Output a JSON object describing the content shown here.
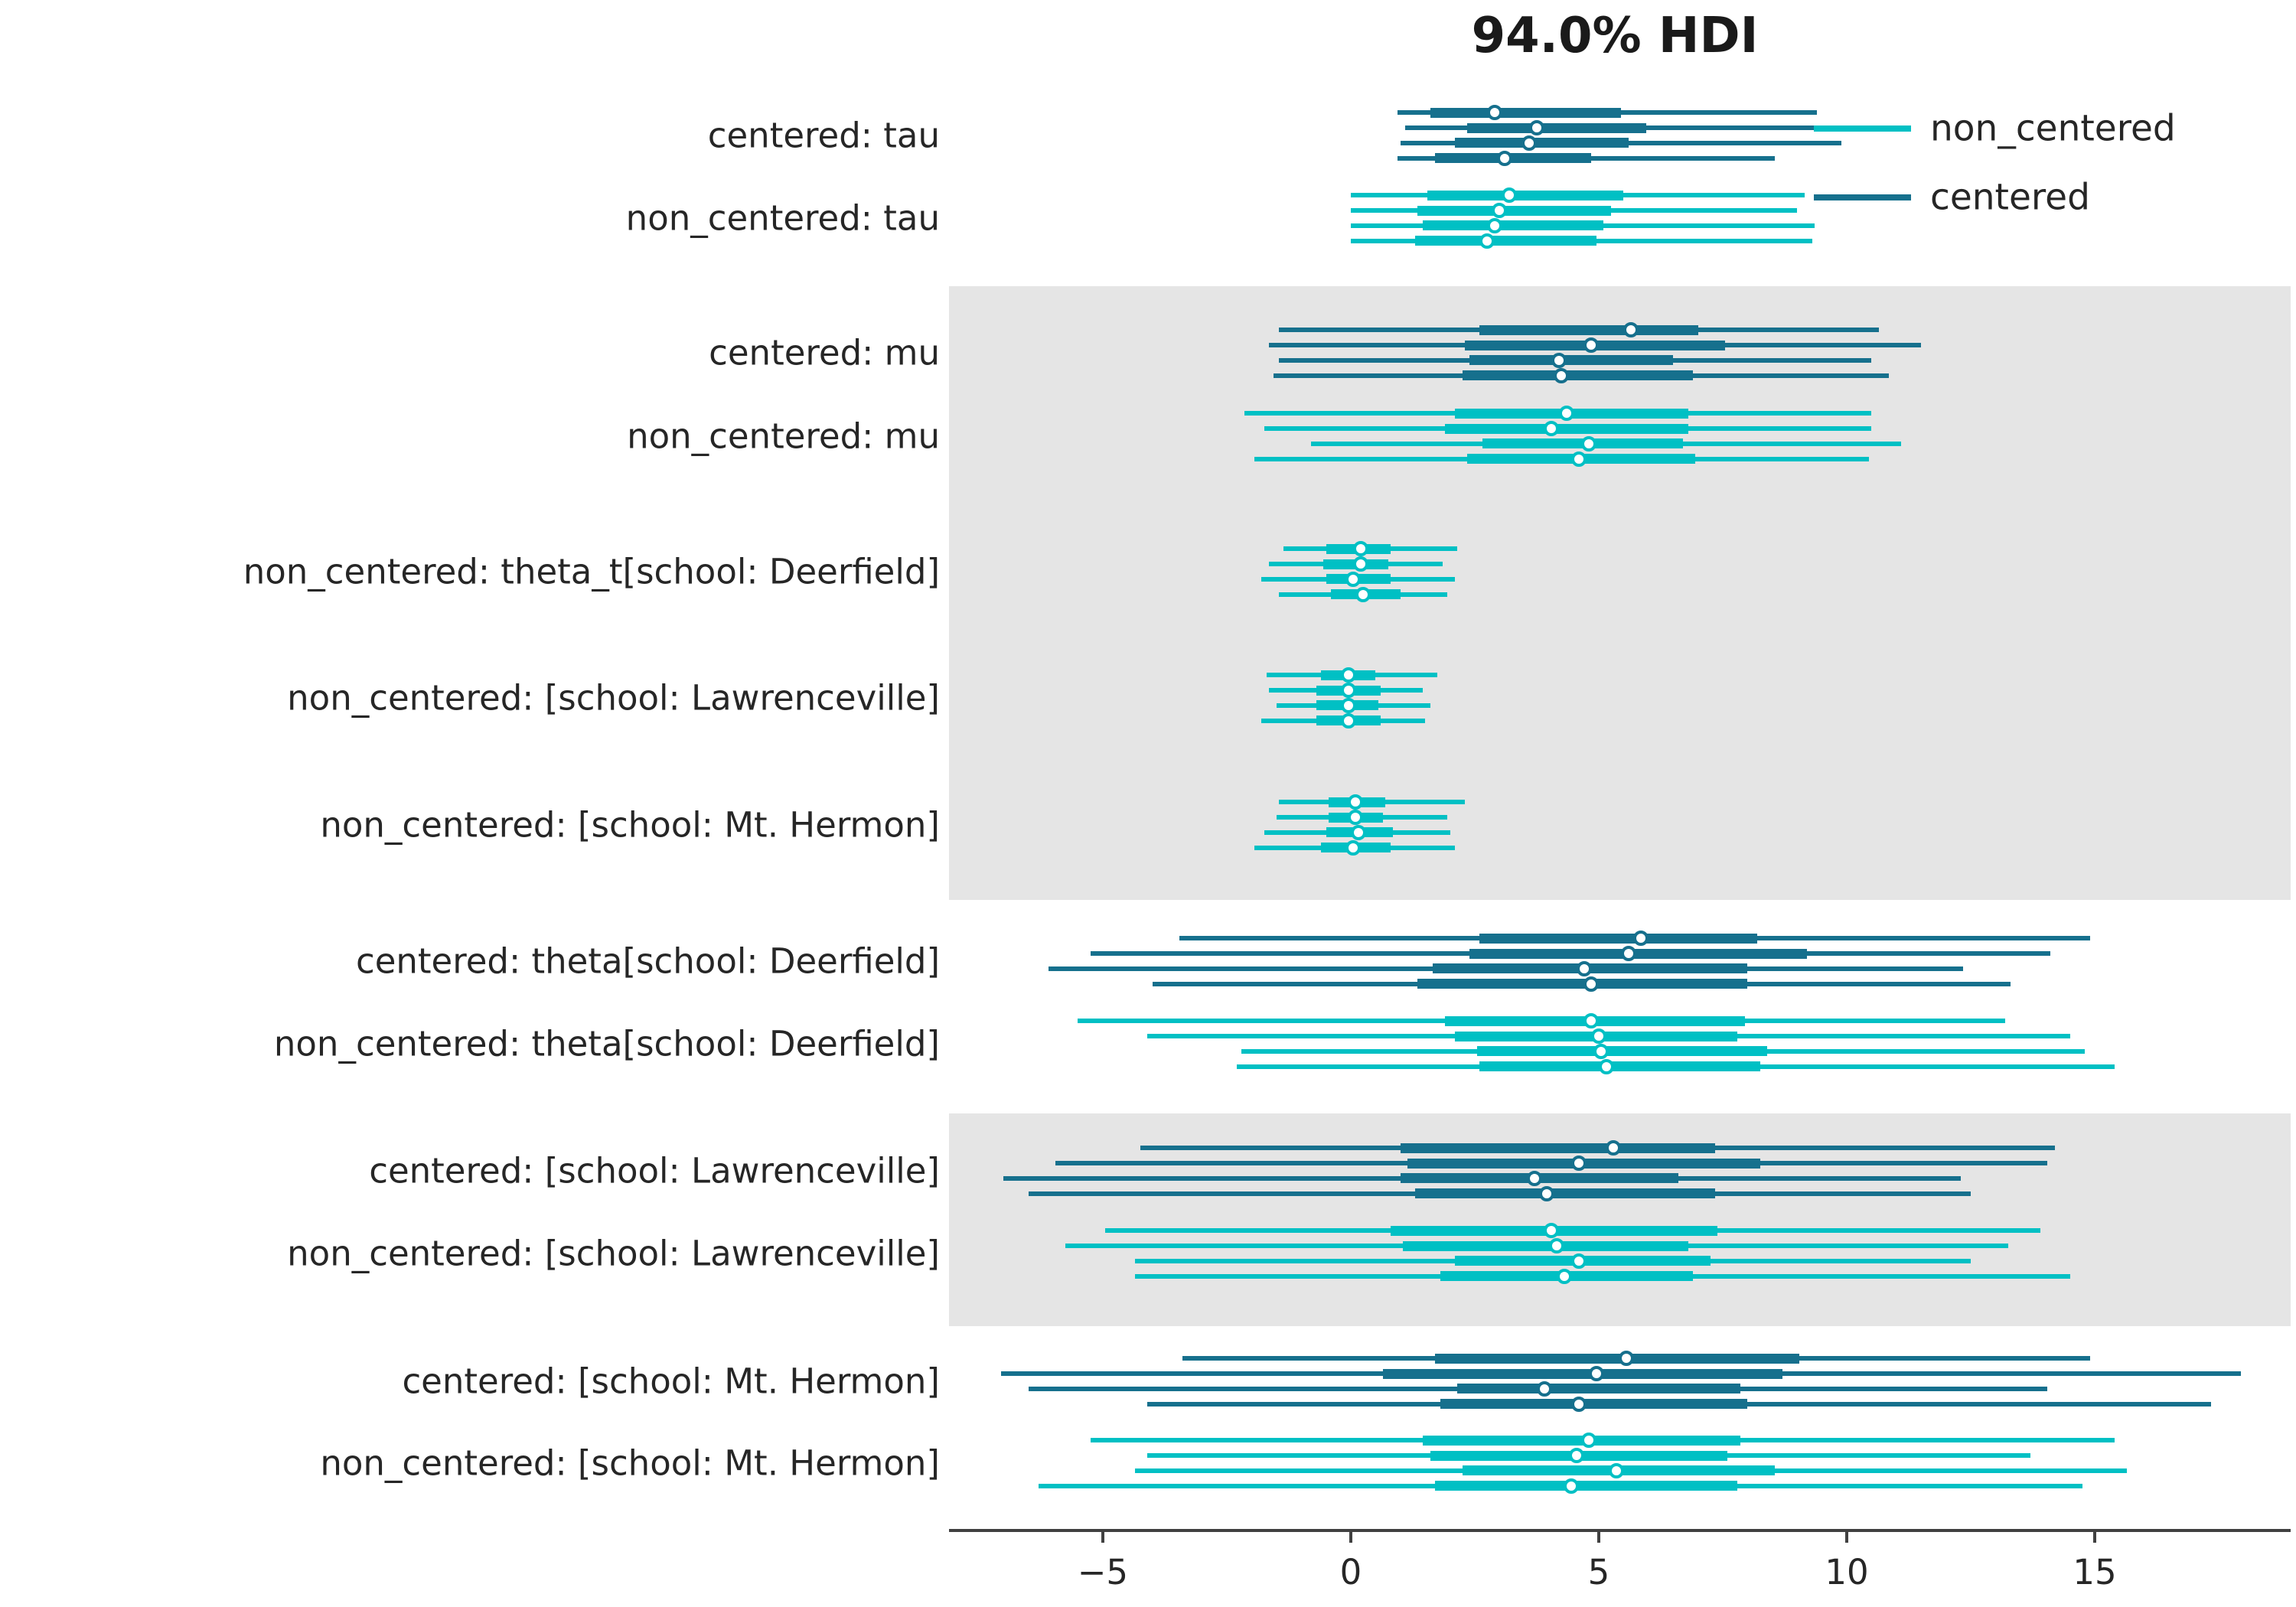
{
  "title": "94.0% HDI",
  "legend": {
    "items": [
      {
        "label": "non_centered",
        "color": "#00c0c4"
      },
      {
        "label": "centered",
        "color": "#16708d"
      }
    ]
  },
  "colors": {
    "centered": "#16708d",
    "non_centered": "#00c0c4",
    "shaded_band": "#e5e5e5",
    "axis": "#414141",
    "text": "#262626"
  },
  "chart_data": {
    "type": "forest",
    "title": "94.0% HDI",
    "hdi_prob": 0.94,
    "orientation": "horizontal",
    "xlabel": "",
    "x_ticks": [
      -5,
      0,
      5,
      10,
      15
    ],
    "xlim": [
      -8.1,
      18.95
    ],
    "legend_entries": [
      "non_centered",
      "centered"
    ],
    "chains_per_row": 4,
    "chain_value_order": [
      "hdi_low",
      "quartile_low",
      "median",
      "quartile_high",
      "hdi_high"
    ],
    "rows": [
      {
        "label": "centered: tau",
        "model": "centered",
        "shaded": false,
        "chains": [
          [
            0.95,
            1.6,
            2.9,
            5.45,
            9.4
          ],
          [
            1.1,
            2.35,
            3.75,
            5.95,
            11.0
          ],
          [
            1.0,
            2.1,
            3.6,
            5.6,
            9.9
          ],
          [
            0.95,
            1.7,
            3.1,
            4.85,
            8.55
          ]
        ]
      },
      {
        "label": "non_centered: tau",
        "model": "non_centered",
        "shaded": false,
        "chains": [
          [
            0.0,
            1.55,
            3.2,
            5.5,
            9.15
          ],
          [
            0.0,
            1.35,
            3.0,
            5.25,
            9.0
          ],
          [
            0.0,
            1.45,
            2.9,
            5.1,
            9.35
          ],
          [
            0.0,
            1.3,
            2.75,
            4.95,
            9.3
          ]
        ]
      },
      {
        "label": "centered: mu",
        "model": "centered",
        "shaded": true,
        "chains": [
          [
            -1.45,
            2.6,
            5.65,
            7.0,
            10.65
          ],
          [
            -1.65,
            2.3,
            4.85,
            7.55,
            11.5
          ],
          [
            -1.45,
            2.4,
            4.2,
            6.5,
            10.5
          ],
          [
            -1.55,
            2.25,
            4.25,
            6.9,
            10.85
          ]
        ]
      },
      {
        "label": "non_centered: mu",
        "model": "non_centered",
        "shaded": true,
        "chains": [
          [
            -2.15,
            2.1,
            4.35,
            6.8,
            10.5
          ],
          [
            -1.75,
            1.9,
            4.05,
            6.8,
            10.5
          ],
          [
            -0.8,
            2.65,
            4.8,
            6.7,
            11.1
          ],
          [
            -1.95,
            2.35,
            4.6,
            6.95,
            10.45
          ]
        ]
      },
      {
        "label": "non_centered: theta_t[school: Deerfield]",
        "model": "non_centered",
        "shaded": true,
        "chains": [
          [
            -1.35,
            -0.5,
            0.2,
            0.8,
            2.15
          ],
          [
            -1.65,
            -0.55,
            0.2,
            0.75,
            1.85
          ],
          [
            -1.8,
            -0.5,
            0.05,
            0.8,
            2.1
          ],
          [
            -1.45,
            -0.4,
            0.25,
            1.0,
            1.95
          ]
        ]
      },
      {
        "label": "non_centered: [school: Lawrenceville]",
        "model": "non_centered",
        "shaded": true,
        "chains": [
          [
            -1.7,
            -0.6,
            -0.05,
            0.5,
            1.75
          ],
          [
            -1.65,
            -0.7,
            -0.05,
            0.6,
            1.45
          ],
          [
            -1.5,
            -0.7,
            -0.05,
            0.55,
            1.6
          ],
          [
            -1.8,
            -0.7,
            -0.05,
            0.6,
            1.5
          ]
        ]
      },
      {
        "label": "non_centered: [school: Mt. Hermon]",
        "model": "non_centered",
        "shaded": true,
        "chains": [
          [
            -1.45,
            -0.45,
            0.1,
            0.7,
            2.3
          ],
          [
            -1.5,
            -0.45,
            0.1,
            0.65,
            1.95
          ],
          [
            -1.75,
            -0.5,
            0.15,
            0.85,
            2.0
          ],
          [
            -1.95,
            -0.6,
            0.05,
            0.8,
            2.1
          ]
        ]
      },
      {
        "label": "centered: theta[school: Deerfield]",
        "model": "centered",
        "shaded": false,
        "chains": [
          [
            -3.45,
            2.6,
            5.85,
            8.2,
            14.9
          ],
          [
            -5.25,
            2.4,
            5.6,
            9.2,
            14.1
          ],
          [
            -6.1,
            1.65,
            4.7,
            8.0,
            12.35
          ],
          [
            -4.0,
            1.35,
            4.85,
            8.0,
            13.3
          ]
        ]
      },
      {
        "label": "non_centered: theta[school: Deerfield]",
        "model": "non_centered",
        "shaded": false,
        "chains": [
          [
            -5.5,
            1.9,
            4.85,
            7.95,
            13.2
          ],
          [
            -4.1,
            2.1,
            5.0,
            7.8,
            14.5
          ],
          [
            -2.2,
            2.55,
            5.05,
            8.4,
            14.8
          ],
          [
            -2.3,
            2.6,
            5.15,
            8.25,
            15.4
          ]
        ]
      },
      {
        "label": "centered: [school: Lawrenceville]",
        "model": "centered",
        "shaded": true,
        "chains": [
          [
            -4.25,
            1.0,
            5.3,
            7.35,
            14.2
          ],
          [
            -5.95,
            1.15,
            4.6,
            8.25,
            14.05
          ],
          [
            -7.0,
            1.0,
            3.7,
            6.6,
            12.3
          ],
          [
            -6.5,
            1.3,
            3.95,
            7.35,
            12.5
          ]
        ]
      },
      {
        "label": "non_centered: [school: Lawrenceville]",
        "model": "non_centered",
        "shaded": true,
        "chains": [
          [
            -4.95,
            0.8,
            4.05,
            7.4,
            13.9
          ],
          [
            -5.75,
            1.05,
            4.15,
            6.8,
            13.25
          ],
          [
            -4.35,
            2.1,
            4.6,
            7.25,
            12.5
          ],
          [
            -4.35,
            1.8,
            4.3,
            6.9,
            14.5
          ]
        ]
      },
      {
        "label": "centered: [school: Mt. Hermon]",
        "model": "centered",
        "shaded": false,
        "chains": [
          [
            -3.4,
            1.7,
            5.55,
            9.05,
            14.9
          ],
          [
            -7.05,
            0.65,
            4.95,
            8.7,
            17.95
          ],
          [
            -6.5,
            2.15,
            3.9,
            7.85,
            14.05
          ],
          [
            -4.1,
            1.8,
            4.6,
            8.0,
            17.35
          ]
        ]
      },
      {
        "label": "non_centered: [school: Mt. Hermon]",
        "model": "non_centered",
        "shaded": false,
        "chains": [
          [
            -5.25,
            1.45,
            4.8,
            7.85,
            15.4
          ],
          [
            -4.1,
            1.6,
            4.55,
            7.6,
            13.7
          ],
          [
            -4.35,
            2.25,
            5.35,
            8.55,
            15.65
          ],
          [
            -6.3,
            1.7,
            4.45,
            7.8,
            14.75
          ]
        ]
      }
    ]
  }
}
